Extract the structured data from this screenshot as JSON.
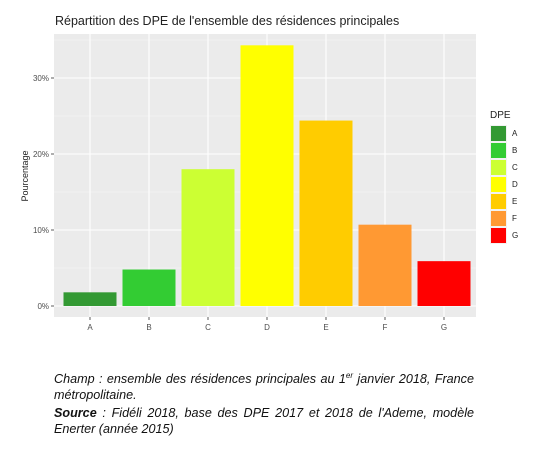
{
  "chart_data": {
    "type": "bar",
    "title": "Répartition des DPE de l'ensemble des résidences principales",
    "ylabel": "Pourcentage",
    "xlabel": "",
    "categories": [
      "A",
      "B",
      "C",
      "D",
      "E",
      "F",
      "G"
    ],
    "values": [
      1.8,
      4.8,
      18.0,
      34.3,
      24.4,
      10.7,
      5.9
    ],
    "ylim": [
      0,
      36
    ],
    "yticks": [
      0,
      10,
      20,
      30
    ],
    "ytick_labels": [
      "0%",
      "10%",
      "20%",
      "30%"
    ],
    "grid": true,
    "legend": {
      "title": "DPE",
      "placement": "right",
      "entries": [
        "A",
        "B",
        "C",
        "D",
        "E",
        "F",
        "G"
      ]
    },
    "colors": [
      "#339933",
      "#33cc33",
      "#ccff33",
      "#ffff00",
      "#ffcc00",
      "#ff9933",
      "#ff0000"
    ]
  },
  "caption": {
    "champ_label": "Champ",
    "champ_text_1": " : ensemble des résidences principales au 1",
    "champ_sup": "er",
    "champ_text_2": " janvier 2018, France métropolitaine.",
    "source_label": "Source",
    "source_text": " : Fidéli 2018, base des DPE 2017 et 2018 de l'Ademe, modèle Enerter (année 2015)"
  }
}
